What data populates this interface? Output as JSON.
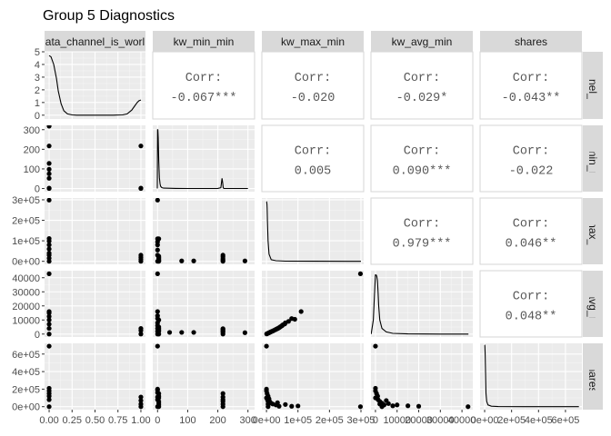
{
  "chart_data": {
    "type": "scatter-matrix",
    "title": "Group 5 Diagnostics",
    "variables": [
      "data_channel_is_world",
      "kw_min_min",
      "kw_max_min",
      "kw_avg_min",
      "shares"
    ],
    "column_strip_labels": [
      "ata_channel_is_worl",
      "kw_min_min",
      "kw_max_min",
      "kw_avg_min",
      "shares"
    ],
    "row_strip_labels": [
      "_channel_is_w",
      "kw_min_min",
      "kw_max_min",
      "kw_avg_min",
      "shares"
    ],
    "x_ticks": [
      {
        "labels": [
          "0.00",
          "0.25",
          "0.50",
          "0.75",
          "1.00"
        ],
        "values": [
          0,
          0.25,
          0.5,
          0.75,
          1.0
        ],
        "range": [
          -0.05,
          1.05
        ]
      },
      {
        "labels": [
          "0",
          "100",
          "200",
          "300"
        ],
        "values": [
          0,
          100,
          200,
          300
        ],
        "range": [
          -16,
          322
        ]
      },
      {
        "labels": [
          "0e+00",
          "1e+05",
          "2e+05",
          "3e+05"
        ],
        "values": [
          0,
          100000,
          200000,
          300000
        ],
        "range": [
          -14700,
          308700
        ]
      },
      {
        "labels": [
          "0",
          "10000",
          "20000",
          "30000",
          "40000"
        ],
        "values": [
          0,
          10000,
          20000,
          30000,
          40000
        ],
        "range": [
          -2080,
          45000
        ]
      },
      {
        "labels": [
          "0e+00",
          "2e+05",
          "4e+05",
          "6e+05"
        ],
        "values": [
          0,
          200000,
          400000,
          600000
        ],
        "range": [
          -34000,
          722000
        ]
      }
    ],
    "y_ticks": [
      {
        "labels": [
          "0",
          "1",
          "2",
          "3",
          "4",
          "5"
        ],
        "values": [
          0,
          1,
          2,
          3,
          4,
          5
        ],
        "range": [
          -0.3,
          5.0
        ]
      },
      {
        "labels": [
          "0",
          "100",
          "200",
          "300"
        ],
        "values": [
          0,
          100,
          200,
          300
        ],
        "range": [
          -16,
          322
        ]
      },
      {
        "labels": [
          "0e+00",
          "1e+05",
          "2e+05",
          "3e+05"
        ],
        "values": [
          0,
          100000,
          200000,
          300000
        ],
        "range": [
          -14700,
          308700
        ]
      },
      {
        "labels": [
          "0",
          "10000",
          "20000",
          "30000",
          "40000"
        ],
        "values": [
          0,
          10000,
          20000,
          30000,
          40000
        ],
        "range": [
          -2080,
          45000
        ]
      },
      {
        "labels": [
          "0e+00",
          "2e+05",
          "4e+05",
          "6e+05"
        ],
        "values": [
          0,
          200000,
          400000,
          600000
        ],
        "range": [
          -34000,
          722000
        ]
      }
    ],
    "correlations": [
      {
        "row": 0,
        "col": 1,
        "label": "Corr:",
        "value": "-0.067***"
      },
      {
        "row": 0,
        "col": 2,
        "label": "Corr:",
        "value": "-0.020"
      },
      {
        "row": 0,
        "col": 3,
        "label": "Corr:",
        "value": "-0.029*"
      },
      {
        "row": 0,
        "col": 4,
        "label": "Corr:",
        "value": "-0.043**"
      },
      {
        "row": 1,
        "col": 2,
        "label": "Corr:",
        "value": "0.005"
      },
      {
        "row": 1,
        "col": 3,
        "label": "Corr:",
        "value": "0.090***"
      },
      {
        "row": 1,
        "col": 4,
        "label": "Corr:",
        "value": "-0.022"
      },
      {
        "row": 2,
        "col": 3,
        "label": "Corr:",
        "value": "0.979***"
      },
      {
        "row": 2,
        "col": 4,
        "label": "Corr:",
        "value": "0.046**"
      },
      {
        "row": 3,
        "col": 4,
        "label": "Corr:",
        "value": "0.048**"
      }
    ],
    "density": [
      {
        "var": 0,
        "x": [
          0,
          0.02,
          0.05,
          0.08,
          0.1,
          0.13,
          0.16,
          0.2,
          0.25,
          0.3,
          0.5,
          0.7,
          0.8,
          0.85,
          0.9,
          0.93,
          0.96,
          0.98,
          1.0
        ],
        "y": [
          4.7,
          4.6,
          4.0,
          2.9,
          1.9,
          0.9,
          0.35,
          0.1,
          0.02,
          0.0,
          0.0,
          0.0,
          0.02,
          0.1,
          0.4,
          0.7,
          1.0,
          1.15,
          1.2
        ]
      },
      {
        "var": 1,
        "x": [
          -1,
          0,
          1,
          2,
          3,
          4,
          5,
          6,
          8,
          10,
          14,
          20,
          60,
          100,
          150,
          200,
          210,
          212,
          214,
          216,
          218,
          220,
          230,
          260,
          300
        ],
        "y": [
          0,
          300,
          300,
          260,
          200,
          140,
          90,
          55,
          25,
          12,
          5,
          2,
          0.5,
          0.2,
          0.2,
          0.5,
          4,
          30,
          52,
          30,
          4,
          0.5,
          0.1,
          0,
          0
        ]
      },
      {
        "var": 2,
        "x": [
          0,
          500,
          1000,
          1500,
          2000,
          3000,
          5000,
          8000,
          15000,
          30000,
          60000,
          150000,
          300000
        ],
        "y": [
          290000,
          290000,
          285000,
          280000,
          260000,
          200000,
          100000,
          35000,
          8000,
          3000,
          1000,
          200,
          0
        ]
      },
      {
        "var": 3,
        "x": [
          -2000,
          -1000,
          0,
          300,
          600,
          900,
          1200,
          1500,
          2000,
          3000,
          5000,
          8000,
          15000,
          30000,
          43000
        ],
        "y": [
          0,
          10000,
          42000,
          42000,
          41000,
          38000,
          30000,
          20000,
          10000,
          4000,
          1500,
          500,
          100,
          0,
          0
        ]
      },
      {
        "var": 4,
        "x": [
          0,
          1000,
          2000,
          4000,
          6000,
          8000,
          10000,
          15000,
          25000,
          50000,
          100000,
          300000,
          700000
        ],
        "y": [
          700000,
          700000,
          690000,
          600000,
          450000,
          300000,
          150000,
          60000,
          20000,
          5000,
          1000,
          100,
          0
        ]
      }
    ],
    "scatter": [
      {
        "row": 1,
        "col": 0,
        "x": [
          0,
          0,
          0,
          0,
          0,
          0,
          0,
          0,
          1,
          1,
          1
        ],
        "y": [
          318,
          217,
          128,
          98,
          75,
          52,
          2,
          0,
          217,
          2,
          0
        ]
      },
      {
        "row": 2,
        "col": 0,
        "x": [
          0,
          0,
          0,
          0,
          0,
          0,
          0,
          0,
          0,
          1,
          1,
          1,
          1
        ],
        "y": [
          298400,
          111300,
          98700,
          80000,
          60000,
          40000,
          30000,
          15000,
          0,
          30000,
          20000,
          10000,
          0
        ]
      },
      {
        "row": 3,
        "col": 0,
        "x": [
          0,
          0,
          0,
          0,
          0,
          0,
          0,
          0,
          1,
          1,
          1
        ],
        "y": [
          42800,
          16000,
          15000,
          12500,
          10000,
          7000,
          4000,
          0,
          4000,
          2500,
          0
        ]
      },
      {
        "row": 4,
        "col": 0,
        "x": [
          0,
          0,
          0,
          0,
          0,
          0,
          0,
          1,
          1,
          1,
          1
        ],
        "y": [
          690000,
          210000,
          180000,
          150000,
          120000,
          80000,
          0,
          110000,
          70000,
          30000,
          0
        ]
      },
      {
        "row": 2,
        "col": 1,
        "x": [
          0,
          0,
          4,
          0,
          0,
          0,
          0,
          0,
          4,
          4,
          4,
          4,
          4,
          4,
          4,
          80,
          120,
          217,
          217,
          217,
          217,
          217,
          290
        ],
        "y": [
          298400,
          110000,
          110000,
          95000,
          80000,
          55000,
          30000,
          0,
          25000,
          20000,
          15000,
          10000,
          5000,
          2000,
          0,
          2000,
          2000,
          30000,
          22000,
          12000,
          5000,
          0,
          2000
        ]
      },
      {
        "row": 3,
        "col": 1,
        "x": [
          0,
          0,
          0,
          0,
          4,
          0,
          0,
          0,
          0,
          0,
          4,
          4,
          4,
          4,
          4,
          40,
          80,
          120,
          217,
          217,
          217,
          217,
          217,
          217,
          290
        ],
        "y": [
          42800,
          16000,
          13000,
          11000,
          10000,
          8000,
          6000,
          4000,
          2000,
          0,
          5000,
          4000,
          3000,
          2000,
          0,
          1200,
          1200,
          1200,
          3800,
          3500,
          2500,
          2000,
          1200,
          0,
          1000
        ]
      },
      {
        "row": 4,
        "col": 1,
        "x": [
          0,
          0,
          0,
          0,
          4,
          4,
          0,
          0,
          0,
          4,
          4,
          4,
          4,
          4,
          217,
          217,
          217,
          217,
          217,
          217
        ],
        "y": [
          690000,
          200000,
          190000,
          160000,
          150000,
          120000,
          110000,
          80000,
          0,
          100000,
          60000,
          40000,
          20000,
          0,
          150000,
          110000,
          80000,
          60000,
          30000,
          0
        ]
      },
      {
        "row": 3,
        "col": 2,
        "x": [
          298400,
          110000,
          90000,
          80000,
          70000,
          60000,
          58000,
          52000,
          50000,
          48000,
          45000,
          43000,
          40000,
          38000,
          35000,
          32000,
          30000,
          28000,
          25000,
          22000,
          20000,
          18000,
          15000,
          12000,
          10000,
          8000,
          6000,
          4000,
          2000,
          500
        ],
        "y": [
          42800,
          16000,
          10500,
          11000,
          9000,
          8000,
          7200,
          6600,
          6000,
          5800,
          5300,
          5000,
          4500,
          4300,
          3900,
          3600,
          3300,
          3100,
          2800,
          2400,
          2200,
          2000,
          1700,
          1400,
          1200,
          900,
          700,
          500,
          300,
          100
        ]
      },
      {
        "row": 4,
        "col": 2,
        "x": [
          0,
          0,
          0,
          0,
          2000,
          3000,
          5000,
          5000,
          5000,
          5000,
          8000,
          10000,
          15000,
          20000,
          30000,
          35000,
          40000,
          60000,
          80000,
          100000,
          298400
        ],
        "y": [
          690000,
          200000,
          180000,
          100000,
          150000,
          80000,
          120000,
          60000,
          30000,
          0,
          90000,
          60000,
          40000,
          30000,
          20000,
          45000,
          5000,
          25000,
          5000,
          8000,
          0
        ]
      },
      {
        "row": 4,
        "col": 3,
        "x": [
          0,
          0,
          0,
          0,
          500,
          1000,
          1200,
          2000,
          2000,
          3000,
          3000,
          4000,
          5000,
          6000,
          8000,
          10000,
          15000,
          20000,
          42800
        ],
        "y": [
          690000,
          210000,
          180000,
          100000,
          150000,
          120000,
          80000,
          60000,
          30000,
          40000,
          0,
          20000,
          70000,
          35000,
          10000,
          20000,
          10000,
          5000,
          0
        ]
      }
    ]
  }
}
